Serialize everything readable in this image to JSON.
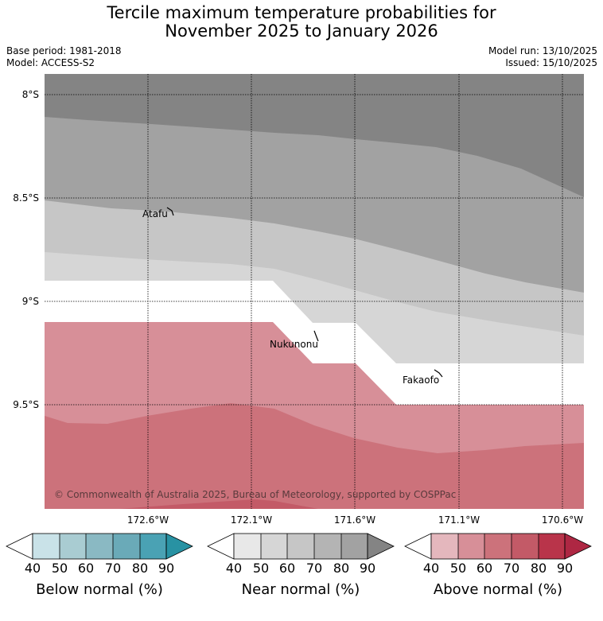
{
  "title_line1": "Tercile maximum temperature probabilities for",
  "title_line2": "November 2025 to January 2026",
  "base_period": "Base period: 1981-2018",
  "model": "Model: ACCESS-S2",
  "model_run": "Model run: 13/10/2025",
  "issued": "Issued: 15/10/2025",
  "map": {
    "lat_labels": [
      "8°S",
      "8.5°S",
      "9°S",
      "9.5°S"
    ],
    "lon_labels": [
      "172.6°W",
      "172.1°W",
      "171.6°W",
      "171.1°W",
      "170.6°W"
    ],
    "places": [
      "Atafu",
      "Nukunonu",
      "Fakaofo"
    ],
    "copyright": "© Commonwealth of Australia 2025, Bureau of Meteorology, supported by COSPPac"
  },
  "colorbars": [
    {
      "label": "Below normal (%)",
      "ticks": [
        "40",
        "50",
        "60",
        "70",
        "80",
        "90"
      ],
      "colors": [
        "#ffffff",
        "#c9e2e8",
        "#a9ccd2",
        "#8ab9c3",
        "#6aaab8",
        "#4aa2b4",
        "#2892a3"
      ]
    },
    {
      "label": "Near normal (%)",
      "ticks": [
        "40",
        "50",
        "60",
        "70",
        "80",
        "90"
      ],
      "colors": [
        "#ffffff",
        "#e8e8e8",
        "#d6d6d6",
        "#c6c6c6",
        "#b4b4b4",
        "#a2a2a2",
        "#848484"
      ]
    },
    {
      "label": "Above normal (%)",
      "ticks": [
        "40",
        "50",
        "60",
        "70",
        "80",
        "90"
      ],
      "colors": [
        "#ffffff",
        "#e4b7bd",
        "#d78f98",
        "#cc727b",
        "#c35a67",
        "#b9344a",
        "#ae2743"
      ]
    }
  ]
}
